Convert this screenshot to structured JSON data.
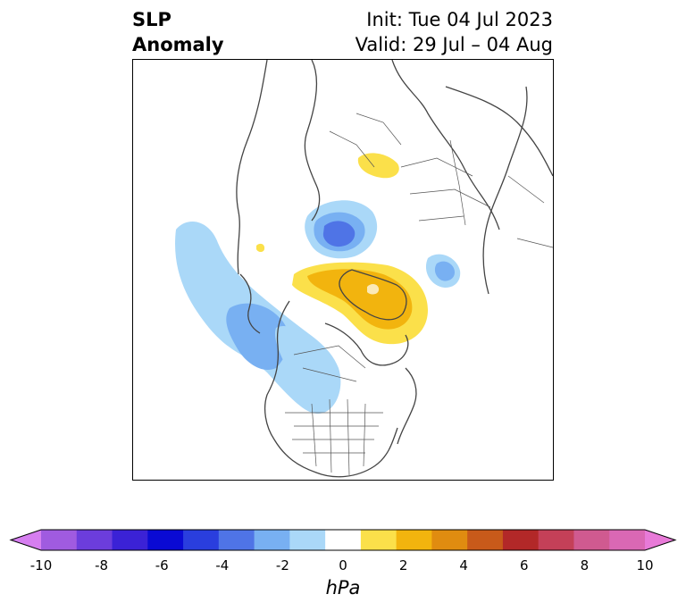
{
  "title": {
    "left_line1": "SLP",
    "left_line2": "Anomaly",
    "right_line1": "Init: Tue 04 Jul 2023",
    "right_line2": "Valid: 29 Jul – 04 Aug"
  },
  "colorbar": {
    "unit_label": "hPa",
    "ticks": [
      "-10",
      "-8",
      "-6",
      "-4",
      "-2",
      "0",
      "2",
      "4",
      "6",
      "8",
      "10"
    ],
    "colors": [
      "#d67ef0",
      "#a05be0",
      "#6c3ddc",
      "#3b22d6",
      "#0a0ad4",
      "#2a3ede",
      "#4f74e6",
      "#78b0f2",
      "#aad8f8",
      "#ffffff",
      "#fbe04a",
      "#f2b40e",
      "#e08c10",
      "#c85a1a",
      "#b22828",
      "#c44058",
      "#d05a90",
      "#da68b4",
      "#e87ad8"
    ]
  }
}
